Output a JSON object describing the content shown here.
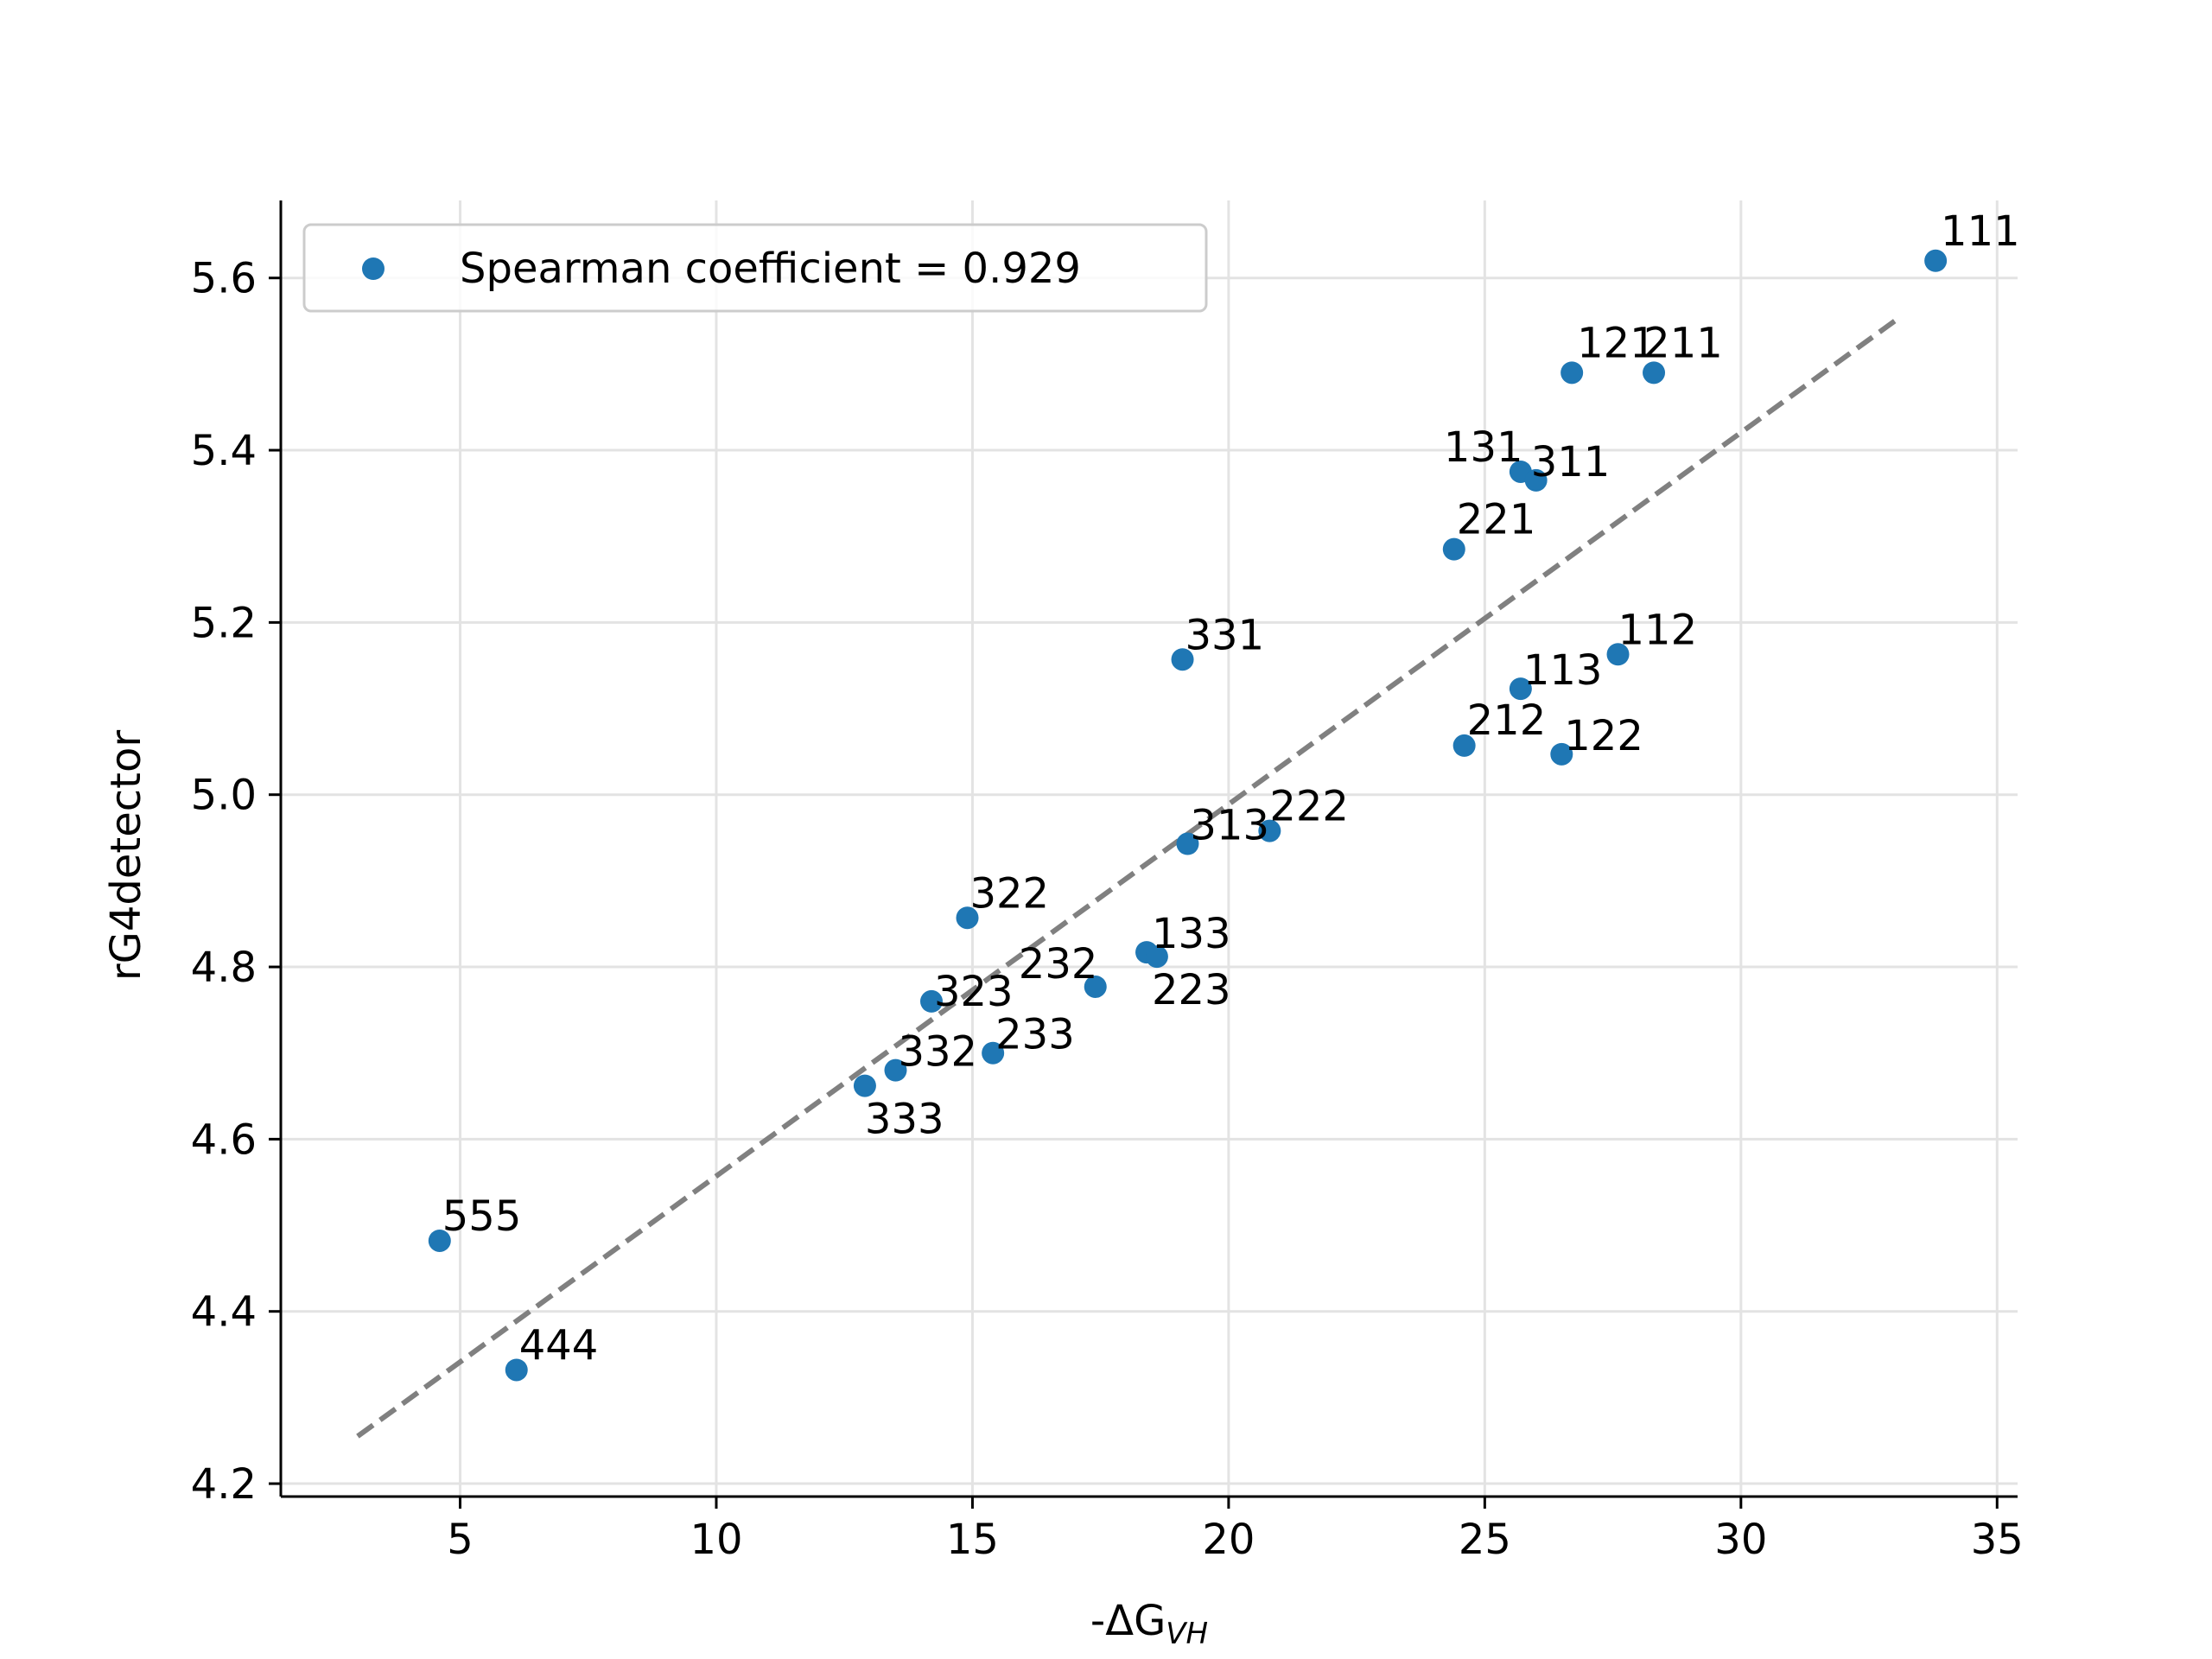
{
  "chart_data": {
    "type": "scatter",
    "xlabel": "-ΔG",
    "xlabel_sub": "VH",
    "ylabel": "rG4detector",
    "xlim": [
      1.5,
      35.4
    ],
    "ylim": [
      4.185,
      5.69
    ],
    "xticks": [
      5,
      10,
      15,
      20,
      25,
      30,
      35
    ],
    "yticks": [
      4.2,
      4.4,
      4.6,
      4.8,
      5.0,
      5.2,
      5.4,
      5.6
    ],
    "grid": true,
    "legend_position": "top-left",
    "legend_label": "Spearman coefficient = 0.929",
    "point_color": "#1f77b4",
    "fit_line_color": "#808080",
    "fit_line": {
      "x": [
        3.0,
        33.0
      ],
      "y": [
        4.255,
        5.55
      ]
    },
    "points": [
      {
        "label": "111",
        "x": 33.8,
        "y": 5.62,
        "ldx": 0.1,
        "ldy": 0.018
      },
      {
        "label": "121",
        "x": 26.7,
        "y": 5.49,
        "ldx": 0.1,
        "ldy": 0.018
      },
      {
        "label": "211",
        "x": 28.3,
        "y": 5.49,
        "ldx": -0.2,
        "ldy": 0.018
      },
      {
        "label": "131",
        "x": 25.7,
        "y": 5.375,
        "ldx": -1.5,
        "ldy": 0.012
      },
      {
        "label": "311",
        "x": 26.0,
        "y": 5.365,
        "ldx": -0.1,
        "ldy": 0.005
      },
      {
        "label": "221",
        "x": 24.4,
        "y": 5.285,
        "ldx": 0.05,
        "ldy": 0.018
      },
      {
        "label": "331",
        "x": 19.1,
        "y": 5.157,
        "ldx": 0.05,
        "ldy": 0.012
      },
      {
        "label": "112",
        "x": 27.6,
        "y": 5.163,
        "ldx": 0.0,
        "ldy": 0.012
      },
      {
        "label": "113",
        "x": 25.7,
        "y": 5.123,
        "ldx": 0.05,
        "ldy": 0.005
      },
      {
        "label": "212",
        "x": 24.6,
        "y": 5.057,
        "ldx": 0.05,
        "ldy": 0.013
      },
      {
        "label": "122",
        "x": 26.5,
        "y": 5.047,
        "ldx": 0.05,
        "ldy": 0.005
      },
      {
        "label": "222",
        "x": 20.8,
        "y": 4.958,
        "ldx": 0.0,
        "ldy": 0.012
      },
      {
        "label": "313",
        "x": 19.2,
        "y": 4.943,
        "ldx": 0.05,
        "ldy": 0.005
      },
      {
        "label": "322",
        "x": 14.9,
        "y": 4.857,
        "ldx": 0.05,
        "ldy": 0.012
      },
      {
        "label": "133",
        "x": 18.4,
        "y": 4.817,
        "ldx": 0.1,
        "ldy": 0.005
      },
      {
        "label": "223",
        "x": 18.6,
        "y": 4.812,
        "ldx": -0.1,
        "ldy": -0.055
      },
      {
        "label": "232",
        "x": 17.4,
        "y": 4.777,
        "ldx": -1.5,
        "ldy": 0.01
      },
      {
        "label": "323",
        "x": 14.2,
        "y": 4.76,
        "ldx": 0.05,
        "ldy": -0.005
      },
      {
        "label": "233",
        "x": 15.4,
        "y": 4.7,
        "ldx": 0.05,
        "ldy": 0.005
      },
      {
        "label": "332",
        "x": 13.5,
        "y": 4.68,
        "ldx": 0.05,
        "ldy": 0.005
      },
      {
        "label": "333",
        "x": 12.9,
        "y": 4.662,
        "ldx": 0.0,
        "ldy": -0.055
      },
      {
        "label": "555",
        "x": 4.6,
        "y": 4.482,
        "ldx": 0.05,
        "ldy": 0.012
      },
      {
        "label": "444",
        "x": 6.1,
        "y": 4.332,
        "ldx": 0.05,
        "ldy": 0.012
      }
    ]
  }
}
